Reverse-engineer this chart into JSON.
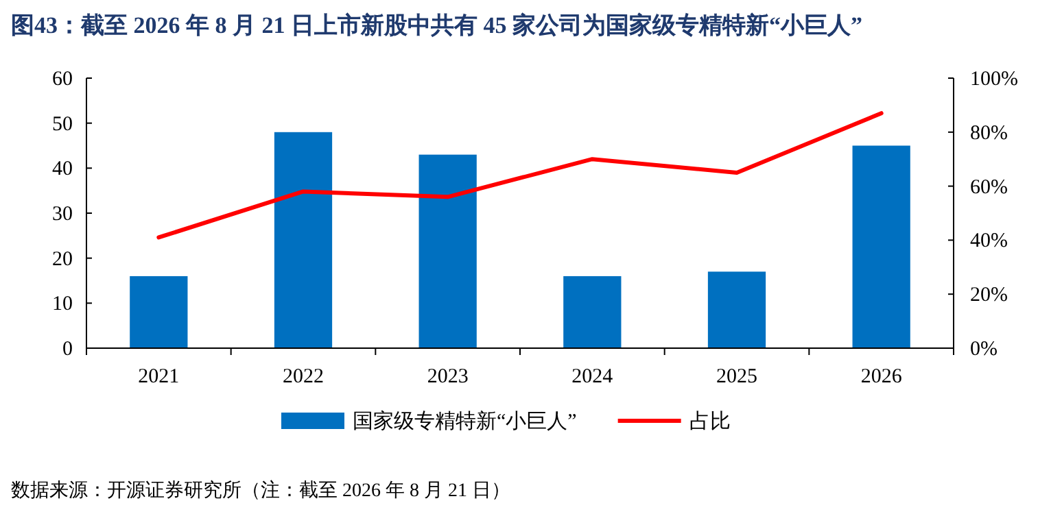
{
  "chart_data": {
    "type": "bar",
    "title": "图43：截至 2026 年 8 月 21 日上市新股中共有 45 家公司为国家级专精特新“小巨人”",
    "categories": [
      "2021",
      "2022",
      "2023",
      "2024",
      "2025",
      "2026"
    ],
    "series": [
      {
        "name": "国家级专精特新“小巨人”",
        "color": "#0070c0",
        "values": [
          16,
          48,
          43,
          16,
          17,
          45
        ]
      },
      {
        "name": "占比",
        "type": "line",
        "axis": "y2",
        "color": "#ff0000",
        "values": [
          41,
          58,
          56,
          70,
          65,
          87
        ]
      }
    ],
    "ylim": [
      0,
      60
    ],
    "yticks": [
      0,
      10,
      20,
      30,
      40,
      50,
      60
    ],
    "y2lim": [
      0,
      100
    ],
    "y2ticks": [
      {
        "value": 0,
        "label": "0%"
      },
      {
        "value": 20,
        "label": "20%"
      },
      {
        "value": 40,
        "label": "40%"
      },
      {
        "value": 60,
        "label": "60%"
      },
      {
        "value": 80,
        "label": "80%"
      },
      {
        "value": 100,
        "label": "100%"
      }
    ],
    "legend": "bottom",
    "grid": false,
    "annotations": [
      "数据来源：开源证券研究所（注：截至 2026 年 8 月 21 日）"
    ]
  }
}
